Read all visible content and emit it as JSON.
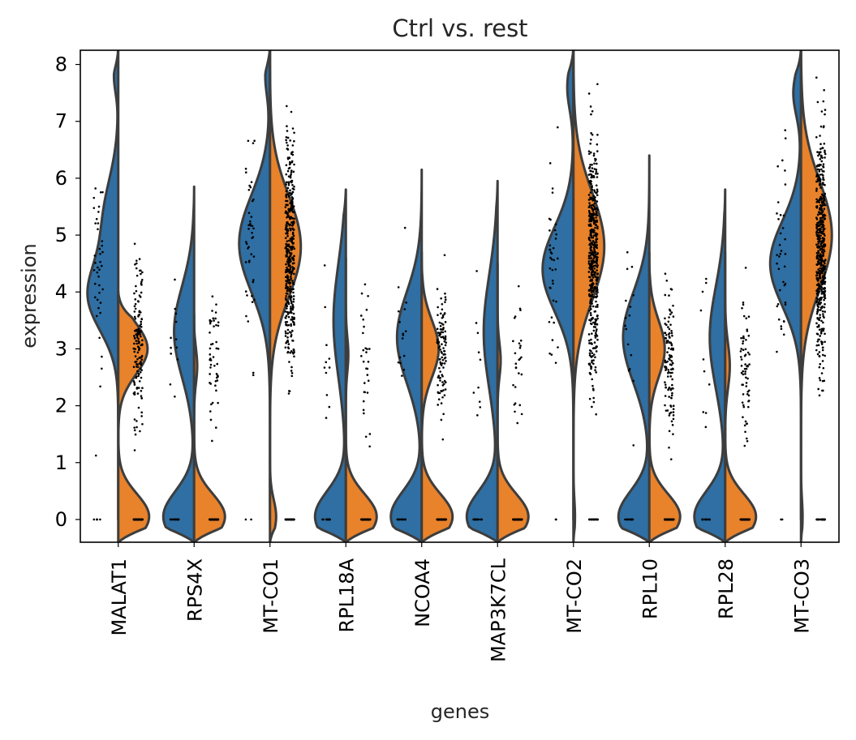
{
  "chart_data": {
    "type": "violin",
    "title": "Ctrl vs. rest",
    "xlabel": "genes",
    "ylabel": "expression",
    "ylim": [
      -0.4,
      8.25
    ],
    "yticks": [
      0,
      1,
      2,
      3,
      4,
      5,
      6,
      7,
      8
    ],
    "grid": false,
    "legend": "none",
    "split": true,
    "categories": [
      "MALAT1",
      "RPS4X",
      "MT-CO1",
      "RPL18A",
      "NCOA4",
      "MAP3K7CL",
      "MT-CO2",
      "RPL10",
      "RPL28",
      "MT-CO3"
    ],
    "series": [
      {
        "color": "#2f6fa3",
        "side": "left",
        "violins": [
          {
            "min": 0.0,
            "max": 8.3,
            "modes": [
              [
                3.9,
                0.6,
                1.0
              ],
              [
                5.3,
                0.7,
                0.5
              ],
              [
                7.8,
                0.3,
                0.15
              ]
            ]
          },
          {
            "min": -0.4,
            "max": 5.85,
            "modes": [
              [
                0.05,
                0.45,
                1.0
              ],
              [
                3.3,
                0.8,
                0.65
              ]
            ]
          },
          {
            "min": 0.0,
            "max": 8.3,
            "modes": [
              [
                4.85,
                0.85,
                1.0
              ],
              [
                7.8,
                0.35,
                0.15
              ]
            ]
          },
          {
            "min": -0.4,
            "max": 5.8,
            "modes": [
              [
                0.05,
                0.45,
                1.0
              ],
              [
                3.5,
                1.0,
                0.4
              ]
            ]
          },
          {
            "min": -0.4,
            "max": 6.15,
            "modes": [
              [
                0.05,
                0.45,
                1.0
              ],
              [
                3.2,
                0.8,
                0.8
              ]
            ]
          },
          {
            "min": -0.4,
            "max": 5.95,
            "modes": [
              [
                0.05,
                0.45,
                1.0
              ],
              [
                3.3,
                1.0,
                0.45
              ]
            ]
          },
          {
            "min": 0.0,
            "max": 8.3,
            "modes": [
              [
                4.4,
                0.75,
                1.0
              ],
              [
                7.6,
                0.4,
                0.2
              ]
            ]
          },
          {
            "min": -0.4,
            "max": 6.4,
            "modes": [
              [
                0.05,
                0.45,
                1.0
              ],
              [
                3.2,
                0.8,
                0.85
              ]
            ]
          },
          {
            "min": -0.4,
            "max": 5.8,
            "modes": [
              [
                0.05,
                0.45,
                1.0
              ],
              [
                3.2,
                0.9,
                0.5
              ]
            ]
          },
          {
            "min": 0.0,
            "max": 8.3,
            "modes": [
              [
                4.5,
                0.75,
                1.0
              ],
              [
                7.5,
                0.4,
                0.25
              ]
            ]
          }
        ]
      },
      {
        "color": "#e8822b",
        "side": "right",
        "violins": [
          {
            "min": -0.4,
            "max": 4.0,
            "modes": [
              [
                0.05,
                0.4,
                1.0
              ],
              [
                3.0,
                0.45,
                0.95
              ]
            ]
          },
          {
            "min": -0.4,
            "max": 3.6,
            "modes": [
              [
                0.05,
                0.4,
                1.0
              ],
              [
                2.7,
                0.3,
                0.1
              ]
            ]
          },
          {
            "min": -0.4,
            "max": 8.3,
            "modes": [
              [
                0.05,
                0.3,
                0.2
              ],
              [
                4.8,
                0.9,
                1.0
              ]
            ]
          },
          {
            "min": -0.4,
            "max": 4.6,
            "modes": [
              [
                0.05,
                0.4,
                1.0
              ],
              [
                2.9,
                0.3,
                0.08
              ]
            ]
          },
          {
            "min": -0.4,
            "max": 4.7,
            "modes": [
              [
                0.05,
                0.4,
                1.0
              ],
              [
                3.0,
                0.5,
                0.55
              ]
            ]
          },
          {
            "min": -0.4,
            "max": 4.5,
            "modes": [
              [
                0.05,
                0.4,
                1.0
              ],
              [
                2.8,
                0.3,
                0.1
              ]
            ]
          },
          {
            "min": -0.4,
            "max": 8.3,
            "modes": [
              [
                0.05,
                0.3,
                0.05
              ],
              [
                4.8,
                0.95,
                1.0
              ]
            ]
          },
          {
            "min": -0.4,
            "max": 4.7,
            "modes": [
              [
                0.05,
                0.4,
                1.0
              ],
              [
                3.0,
                0.5,
                0.5
              ]
            ]
          },
          {
            "min": -0.4,
            "max": 4.7,
            "modes": [
              [
                0.05,
                0.4,
                1.0
              ],
              [
                2.7,
                0.4,
                0.15
              ]
            ]
          },
          {
            "min": -0.4,
            "max": 8.3,
            "modes": [
              [
                0.05,
                0.3,
                0.05
              ],
              [
                5.0,
                0.95,
                1.0
              ]
            ]
          }
        ]
      }
    ],
    "points": {
      "color": "#000000",
      "groups": [
        {
          "left": {
            "zero_frac": 0.1,
            "center": 4.3,
            "spread": 1.5,
            "count": 45
          },
          "right": {
            "zero_frac": 0.45,
            "center": 3.1,
            "spread": 0.9,
            "count": 260
          }
        },
        {
          "left": {
            "zero_frac": 0.6,
            "center": 3.0,
            "spread": 0.8,
            "count": 30
          },
          "right": {
            "zero_frac": 0.7,
            "center": 2.8,
            "spread": 0.7,
            "count": 170
          }
        },
        {
          "left": {
            "zero_frac": 0.05,
            "center": 5.0,
            "spread": 1.2,
            "count": 45
          },
          "right": {
            "zero_frac": 0.1,
            "center": 4.6,
            "spread": 1.3,
            "count": 460
          }
        },
        {
          "left": {
            "zero_frac": 0.55,
            "center": 3.2,
            "spread": 0.9,
            "count": 25
          },
          "right": {
            "zero_frac": 0.75,
            "center": 2.8,
            "spread": 0.8,
            "count": 120
          }
        },
        {
          "left": {
            "zero_frac": 0.45,
            "center": 3.1,
            "spread": 0.9,
            "count": 30
          },
          "right": {
            "zero_frac": 0.55,
            "center": 3.0,
            "spread": 0.8,
            "count": 240
          }
        },
        {
          "left": {
            "zero_frac": 0.6,
            "center": 2.9,
            "spread": 1.0,
            "count": 25
          },
          "right": {
            "zero_frac": 0.75,
            "center": 2.9,
            "spread": 0.8,
            "count": 110
          }
        },
        {
          "left": {
            "zero_frac": 0.05,
            "center": 4.6,
            "spread": 1.1,
            "count": 40
          },
          "right": {
            "zero_frac": 0.05,
            "center": 4.6,
            "spread": 1.3,
            "count": 480
          }
        },
        {
          "left": {
            "zero_frac": 0.45,
            "center": 3.2,
            "spread": 1.0,
            "count": 30
          },
          "right": {
            "zero_frac": 0.55,
            "center": 2.8,
            "spread": 0.8,
            "count": 260
          }
        },
        {
          "left": {
            "zero_frac": 0.6,
            "center": 3.1,
            "spread": 0.9,
            "count": 25
          },
          "right": {
            "zero_frac": 0.7,
            "center": 2.6,
            "spread": 0.8,
            "count": 220
          }
        },
        {
          "left": {
            "zero_frac": 0.05,
            "center": 4.8,
            "spread": 1.2,
            "count": 40
          },
          "right": {
            "zero_frac": 0.05,
            "center": 4.8,
            "spread": 1.3,
            "count": 520
          }
        }
      ]
    }
  }
}
